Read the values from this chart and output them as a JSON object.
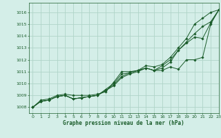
{
  "bg_color": "#d4eee8",
  "grid_color": "#b0d4c8",
  "line_color": "#1a5c2a",
  "title": "Graphe pression niveau de la mer (hPa)",
  "ylim": [
    1007.5,
    1016.8
  ],
  "xlim": [
    -0.5,
    23
  ],
  "yticks": [
    1008,
    1009,
    1010,
    1011,
    1012,
    1013,
    1014,
    1015,
    1016
  ],
  "xticks": [
    0,
    1,
    2,
    3,
    4,
    5,
    6,
    7,
    8,
    9,
    10,
    11,
    12,
    13,
    14,
    15,
    16,
    17,
    18,
    19,
    20,
    21,
    22,
    23
  ],
  "s1": [
    1008.0,
    1008.6,
    1008.7,
    1009.0,
    1009.1,
    1009.0,
    1009.0,
    1009.0,
    1009.1,
    1009.3,
    1010.1,
    1011.0,
    1011.0,
    1011.1,
    1011.5,
    1011.4,
    1011.6,
    1012.2,
    1013.0,
    1013.8,
    1015.0,
    1015.5,
    1016.0,
    1016.2
  ],
  "s2": [
    1008.0,
    1008.5,
    1008.6,
    1008.9,
    1009.0,
    1008.7,
    1008.8,
    1008.9,
    1009.0,
    1009.5,
    1010.0,
    1010.8,
    1010.9,
    1011.1,
    1011.3,
    1011.1,
    1011.5,
    1012.0,
    1012.8,
    1013.5,
    1014.2,
    1014.8,
    1015.2,
    1016.2
  ],
  "s3": [
    1008.0,
    1008.5,
    1008.6,
    1008.9,
    1009.0,
    1008.7,
    1008.8,
    1008.9,
    1009.0,
    1009.4,
    1009.8,
    1010.5,
    1010.8,
    1011.0,
    1011.3,
    1011.1,
    1011.1,
    1011.4,
    1011.2,
    1012.0,
    1012.0,
    1012.2,
    1015.0,
    1016.2
  ],
  "s4": [
    1008.0,
    1008.5,
    1008.6,
    1008.9,
    1009.0,
    1008.7,
    1008.8,
    1008.9,
    1009.0,
    1009.4,
    1009.9,
    1010.6,
    1010.9,
    1011.1,
    1011.3,
    1011.1,
    1011.3,
    1011.8,
    1012.8,
    1013.4,
    1013.9,
    1013.8,
    1015.1,
    1016.2
  ]
}
